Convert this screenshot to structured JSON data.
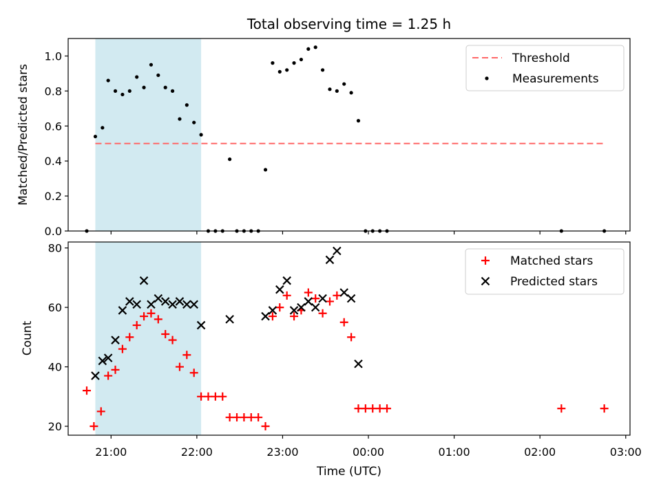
{
  "chart_data": [
    {
      "type": "scatter",
      "title": "Total observing time = 1.25 h",
      "xlabel": "",
      "ylabel": "Matched/Predicted stars",
      "ylim": [
        0,
        1.1
      ],
      "yticks": [
        "0.0",
        "0.2",
        "0.4",
        "0.6",
        "0.8",
        "1.0"
      ],
      "legend_position": "top-right",
      "shaded_interval": [
        "20:49",
        "22:03"
      ],
      "shade_color": "#add8e6",
      "threshold": {
        "name": "Threshold",
        "value": 0.5,
        "x_range": [
          "20:49",
          "02:45"
        ],
        "color": "#ff6666",
        "style": "dashed"
      },
      "series": [
        {
          "name": "Measurements",
          "marker": "dot",
          "color": "#000000",
          "points": [
            [
              "20:43",
              0.0
            ],
            [
              "20:49",
              0.54
            ],
            [
              "20:54",
              0.59
            ],
            [
              "20:58",
              0.86
            ],
            [
              "21:03",
              0.8
            ],
            [
              "21:08",
              0.78
            ],
            [
              "21:13",
              0.8
            ],
            [
              "21:18",
              0.88
            ],
            [
              "21:23",
              0.82
            ],
            [
              "21:28",
              0.95
            ],
            [
              "21:33",
              0.89
            ],
            [
              "21:38",
              0.82
            ],
            [
              "21:43",
              0.8
            ],
            [
              "21:48",
              0.64
            ],
            [
              "21:53",
              0.72
            ],
            [
              "21:58",
              0.62
            ],
            [
              "22:03",
              0.55
            ],
            [
              "22:08",
              0.0
            ],
            [
              "22:13",
              0.0
            ],
            [
              "22:18",
              0.0
            ],
            [
              "22:23",
              0.41
            ],
            [
              "22:28",
              0.0
            ],
            [
              "22:33",
              0.0
            ],
            [
              "22:38",
              0.0
            ],
            [
              "22:43",
              0.0
            ],
            [
              "22:48",
              0.35
            ],
            [
              "22:53",
              0.96
            ],
            [
              "22:58",
              0.91
            ],
            [
              "23:03",
              0.92
            ],
            [
              "23:08",
              0.96
            ],
            [
              "23:13",
              0.98
            ],
            [
              "23:18",
              1.04
            ],
            [
              "23:23",
              1.05
            ],
            [
              "23:28",
              0.92
            ],
            [
              "23:33",
              0.81
            ],
            [
              "23:38",
              0.8
            ],
            [
              "23:43",
              0.84
            ],
            [
              "23:48",
              0.79
            ],
            [
              "23:53",
              0.63
            ],
            [
              "23:58",
              0.0
            ],
            [
              "00:03",
              0.0
            ],
            [
              "00:08",
              0.0
            ],
            [
              "00:13",
              0.0
            ],
            [
              "02:15",
              0.0
            ],
            [
              "02:45",
              0.0
            ]
          ]
        }
      ]
    },
    {
      "type": "scatter",
      "title": "",
      "xlabel": "Time (UTC)",
      "ylabel": "Count",
      "ylim": [
        17,
        82
      ],
      "yticks": [
        "20",
        "40",
        "60",
        "80"
      ],
      "xlim": [
        "20:30",
        "03:03"
      ],
      "xticks": [
        "21:00",
        "22:00",
        "23:00",
        "00:00",
        "01:00",
        "02:00",
        "03:00"
      ],
      "legend_position": "top-right",
      "shaded_interval": [
        "20:49",
        "22:03"
      ],
      "shade_color": "#add8e6",
      "series": [
        {
          "name": "Matched stars",
          "marker": "plus",
          "color": "#ff0000",
          "points": [
            [
              "20:43",
              32
            ],
            [
              "20:48",
              20
            ],
            [
              "20:53",
              25
            ],
            [
              "20:58",
              37
            ],
            [
              "21:03",
              39
            ],
            [
              "21:08",
              46
            ],
            [
              "21:13",
              50
            ],
            [
              "21:18",
              54
            ],
            [
              "21:23",
              57
            ],
            [
              "21:28",
              58
            ],
            [
              "21:33",
              56
            ],
            [
              "21:38",
              51
            ],
            [
              "21:43",
              49
            ],
            [
              "21:48",
              40
            ],
            [
              "21:53",
              44
            ],
            [
              "21:58",
              38
            ],
            [
              "22:03",
              30
            ],
            [
              "22:08",
              30
            ],
            [
              "22:13",
              30
            ],
            [
              "22:18",
              30
            ],
            [
              "22:23",
              23
            ],
            [
              "22:28",
              23
            ],
            [
              "22:33",
              23
            ],
            [
              "22:38",
              23
            ],
            [
              "22:43",
              23
            ],
            [
              "22:48",
              20
            ],
            [
              "22:53",
              57
            ],
            [
              "22:58",
              60
            ],
            [
              "23:03",
              64
            ],
            [
              "23:08",
              57
            ],
            [
              "23:13",
              59
            ],
            [
              "23:18",
              65
            ],
            [
              "23:23",
              63
            ],
            [
              "23:28",
              58
            ],
            [
              "23:33",
              62
            ],
            [
              "23:38",
              64
            ],
            [
              "23:43",
              55
            ],
            [
              "23:48",
              50
            ],
            [
              "23:53",
              26
            ],
            [
              "23:58",
              26
            ],
            [
              "00:03",
              26
            ],
            [
              "00:08",
              26
            ],
            [
              "00:13",
              26
            ],
            [
              "02:15",
              26
            ],
            [
              "02:45",
              26
            ]
          ]
        },
        {
          "name": "Predicted stars",
          "marker": "x",
          "color": "#000000",
          "points": [
            [
              "20:49",
              37
            ],
            [
              "20:54",
              42
            ],
            [
              "20:58",
              43
            ],
            [
              "21:03",
              49
            ],
            [
              "21:08",
              59
            ],
            [
              "21:13",
              62
            ],
            [
              "21:18",
              61
            ],
            [
              "21:23",
              69
            ],
            [
              "21:28",
              61
            ],
            [
              "21:33",
              63
            ],
            [
              "21:38",
              62
            ],
            [
              "21:43",
              61
            ],
            [
              "21:48",
              62
            ],
            [
              "21:53",
              61
            ],
            [
              "21:58",
              61
            ],
            [
              "22:03",
              54
            ],
            [
              "22:23",
              56
            ],
            [
              "22:48",
              57
            ],
            [
              "22:53",
              59
            ],
            [
              "22:58",
              66
            ],
            [
              "23:03",
              69
            ],
            [
              "23:08",
              59
            ],
            [
              "23:13",
              60
            ],
            [
              "23:18",
              62
            ],
            [
              "23:23",
              60
            ],
            [
              "23:28",
              63
            ],
            [
              "23:33",
              76
            ],
            [
              "23:38",
              79
            ],
            [
              "23:43",
              65
            ],
            [
              "23:48",
              63
            ],
            [
              "23:53",
              41
            ]
          ]
        }
      ]
    }
  ]
}
